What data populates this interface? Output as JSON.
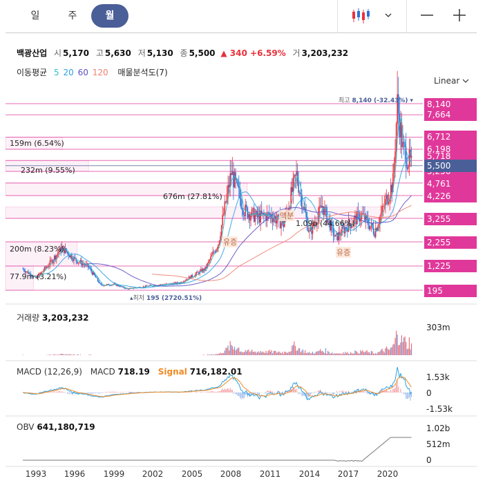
{
  "tabs": [
    {
      "label": "일",
      "active": false
    },
    {
      "label": "주",
      "active": false
    },
    {
      "label": "월",
      "active": true
    }
  ],
  "toolbar": {
    "chart_type_icon": "candlestick-icon",
    "dropdown_icon": "chevron-down-icon",
    "zoom_out_icon": "minus-icon",
    "zoom_in_icon": "plus-icon"
  },
  "quote": {
    "name": "백광산업",
    "open_label": "시",
    "open": "5,170",
    "high_label": "고",
    "high": "5,630",
    "low_label": "저",
    "low": "5,130",
    "close_label": "종",
    "close": "5,500",
    "change": "▲ 340 +6.59%",
    "volume_label": "거",
    "volume": "3,203,232"
  },
  "indicators": {
    "ma_label": "이동평균",
    "ma5": "5",
    "ma20": "20",
    "ma60": "60",
    "ma120": "120",
    "volume_profile": "매물분석도(7)"
  },
  "scale": {
    "label": "Linear"
  },
  "colors": {
    "up": "#e8323c",
    "down": "#2f6fd6",
    "level": "#e0389a",
    "current": "#4a5e97",
    "tab_active": "#4a5e97"
  },
  "chart_data": [
    {
      "type": "candlestick",
      "title": "백광산업",
      "x_range": [
        "1992",
        "2021-11"
      ],
      "ylim": [
        0,
        8800
      ],
      "price_levels": [
        "8,140",
        "7,664",
        "6,712",
        "6,198",
        "5,500",
        "4,761",
        "4,226",
        "3,255",
        "2,255",
        "1,225",
        "195"
      ],
      "current_price": "5,500",
      "hidden_levels": [
        "5,718",
        "5,256"
      ],
      "high_annotation": {
        "label": "최고",
        "value": "8,140 (-32.43%)"
      },
      "low_annotation": {
        "label": "최저",
        "value": "195 (2720.51%)"
      },
      "volume_profile": [
        {
          "label": "159m (6.54%)",
          "range": [
            6198,
            6712
          ],
          "share": 6.54
        },
        {
          "label": "232m (9.55%)",
          "range": [
            5256,
            5718
          ],
          "share": 9.55
        },
        {
          "label": "676m (27.81%)",
          "range": [
            4226,
            4761
          ],
          "share": 27.81
        },
        {
          "label": "1.09b (44.66%)",
          "range": [
            3255,
            3740
          ],
          "share": 44.66
        },
        {
          "label": "200m (8.23%)",
          "range": [
            1225,
            2255
          ],
          "share": 8.23
        },
        {
          "label": "77.9m (3.21%)",
          "range": [
            195,
            1225
          ],
          "share": 3.21
        }
      ],
      "events": [
        "유증",
        "액분",
        "유증"
      ],
      "key_points": [
        {
          "x": "1992",
          "y": 1100
        },
        {
          "x": "1993",
          "y": 700
        },
        {
          "x": "1994",
          "y": 1300
        },
        {
          "x": "1995",
          "y": 2000
        },
        {
          "x": "1996",
          "y": 1500
        },
        {
          "x": "1997",
          "y": 1200
        },
        {
          "x": "1998",
          "y": 400
        },
        {
          "x": "1999",
          "y": 450
        },
        {
          "x": "2000",
          "y": 250
        },
        {
          "x": "2002",
          "y": 400
        },
        {
          "x": "2004",
          "y": 500
        },
        {
          "x": "2006",
          "y": 1100
        },
        {
          "x": "2007",
          "y": 2200
        },
        {
          "x": "2008",
          "y": 5200
        },
        {
          "x": "2009",
          "y": 3600
        },
        {
          "x": "2010",
          "y": 3300
        },
        {
          "x": "2011",
          "y": 3400
        },
        {
          "x": "2012",
          "y": 3000
        },
        {
          "x": "2013",
          "y": 5100
        },
        {
          "x": "2014",
          "y": 2600
        },
        {
          "x": "2015",
          "y": 3800
        },
        {
          "x": "2016",
          "y": 2400
        },
        {
          "x": "2017",
          "y": 3000
        },
        {
          "x": "2018",
          "y": 3400
        },
        {
          "x": "2019",
          "y": 2700
        },
        {
          "x": "2020-06",
          "y": 4800
        },
        {
          "x": "2020-10",
          "y": 8140
        },
        {
          "x": "2021-03",
          "y": 6200
        },
        {
          "x": "2021-11",
          "y": 5500
        }
      ]
    },
    {
      "type": "bar",
      "title": "거래량",
      "value_label": "3,203,232",
      "y_tick": "303m"
    },
    {
      "type": "line",
      "title": "MACD (12,26,9)",
      "macd_label": "MACD",
      "macd_value": "718.19",
      "signal_label": "Signal",
      "signal_value": "716,182.01",
      "y_ticks": [
        "1.53k",
        "0",
        "-1.53k"
      ]
    },
    {
      "type": "line",
      "title": "OBV",
      "value_label": "641,180,719",
      "y_ticks": [
        "1.02b",
        "512m",
        "0"
      ]
    }
  ],
  "x_ticks": [
    "1993",
    "1996",
    "1999",
    "2002",
    "2005",
    "2008",
    "2011",
    "2014",
    "2017",
    "2020"
  ]
}
